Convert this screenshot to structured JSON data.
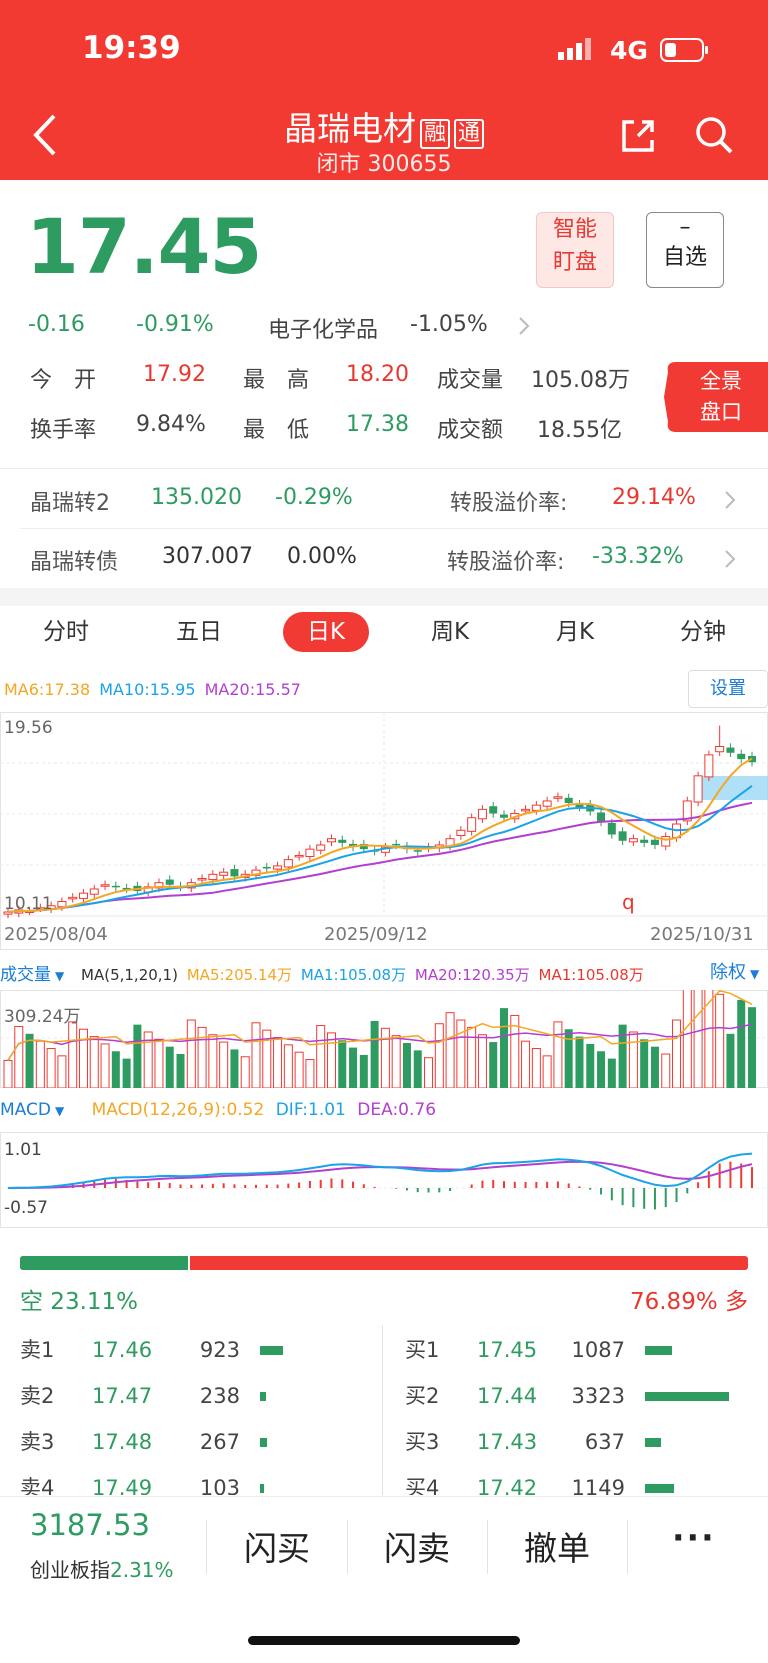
{
  "status_bar": {
    "time": "19:39",
    "network": "4G"
  },
  "header": {
    "name": "晶瑞电材",
    "badge1": "融",
    "badge2": "通",
    "subtitle": "闭市 300655"
  },
  "quote": {
    "price": "17.45",
    "change": "-0.16",
    "change_pct": "-0.91%",
    "sector_name": "电子化学品",
    "sector_pct": "-1.05%",
    "smart_watch": "智能\n盯盘",
    "watch_minus": "–",
    "watch_label": "自选",
    "panorama": "全景\n盘口",
    "open_label": "今　开",
    "open": "17.92",
    "high_label": "最　高",
    "high": "18.20",
    "vol_label": "成交量",
    "vol": "105.08万",
    "turnover_label": "换手率",
    "turnover": "9.84%",
    "low_label": "最　低",
    "low": "17.38",
    "amount_label": "成交额",
    "amount": "18.55亿"
  },
  "bonds": [
    {
      "name": "晶瑞转2",
      "price": "135.020",
      "pct": "-0.29%",
      "premium_label": "转股溢价率:",
      "premium": "29.14%",
      "premium_color": "#e8382f"
    },
    {
      "name": "晶瑞转债",
      "price": "307.007",
      "pct": "0.00%",
      "premium_label": "转股溢价率:",
      "premium": "-33.32%",
      "premium_color": "#2e9b61"
    }
  ],
  "tabs": [
    "分时",
    "五日",
    "日K",
    "周K",
    "月K",
    "分钟"
  ],
  "active_tab": "日K",
  "ma": {
    "ma6": "MA6:17.38",
    "ma10": "MA10:15.95",
    "ma20": "MA20:15.57",
    "settings": "设置"
  },
  "colors": {
    "red": "#f33a32",
    "green": "#2e9b61",
    "ma_yellow": "#f5a623",
    "ma_blue": "#1aa3e8",
    "ma_purple": "#b23fcf"
  },
  "kline": {
    "y_top": "19.56",
    "y_bottom": "10.11",
    "dates": [
      "2025/08/04",
      "2025/09/12",
      "2025/10/31"
    ],
    "marker": "q"
  },
  "volume": {
    "label": "成交量",
    "params": "MA(5,1,20,1)",
    "ma5": "MA5:205.14万",
    "ma1": "MA1:105.08万",
    "ma20": "MA20:120.35万",
    "ma1b": "MA1:105.08万",
    "adjust": "除权",
    "max": "309.24万"
  },
  "macd": {
    "label": "MACD",
    "params": "MACD(12,26,9):0.52",
    "dif": "DIF:1.01",
    "dea": "DEA:0.76",
    "top": "1.01",
    "bottom": "-0.57"
  },
  "ratio": {
    "short_label": "空 23.11%",
    "long_label": "76.89% 多",
    "short_fraction": 0.2311
  },
  "sell": [
    {
      "label": "卖1",
      "price": "17.46",
      "vol": "923",
      "level": 923
    },
    {
      "label": "卖2",
      "price": "17.47",
      "vol": "238",
      "level": 238
    },
    {
      "label": "卖3",
      "price": "17.48",
      "vol": "267",
      "level": 267
    },
    {
      "label": "卖4",
      "price": "17.49",
      "vol": "103",
      "level": 103
    }
  ],
  "buy": [
    {
      "label": "买1",
      "price": "17.45",
      "vol": "1087",
      "level": 1087
    },
    {
      "label": "买2",
      "price": "17.44",
      "vol": "3323",
      "level": 3323
    },
    {
      "label": "买3",
      "price": "17.43",
      "vol": "637",
      "level": 637
    },
    {
      "label": "买4",
      "price": "17.42",
      "vol": "1149",
      "level": 1149
    }
  ],
  "bottom": {
    "index_value": "3187.53",
    "index_name": "创业板指",
    "index_pct": "2.31%",
    "flash_buy": "闪买",
    "flash_sell": "闪卖",
    "cancel": "撤单",
    "more": "···"
  }
}
